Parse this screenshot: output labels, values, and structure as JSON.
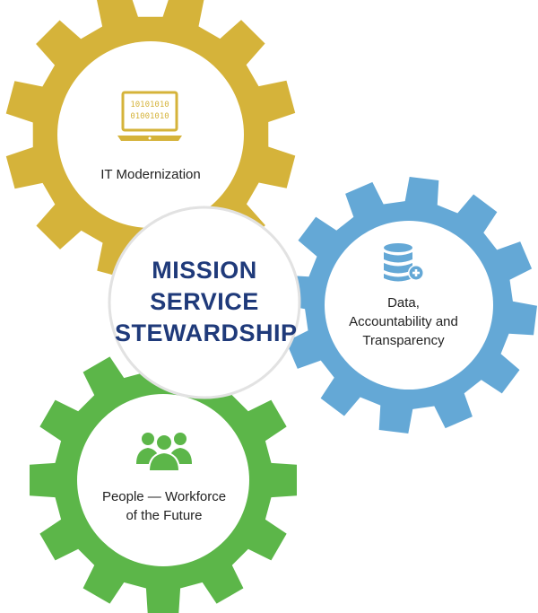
{
  "colors": {
    "gear_it": "#d5b33a",
    "gear_data": "#64a8d6",
    "gear_people": "#5cb649",
    "center_text": "#1f3a7a",
    "label_text": "#222222"
  },
  "center": {
    "lines": [
      "MISSION",
      "SERVICE",
      "STEWARDSHIP"
    ]
  },
  "gears": {
    "it": {
      "icon": "laptop-binary-icon",
      "lines": [
        "IT Modernization"
      ]
    },
    "data": {
      "icon": "database-plus-icon",
      "lines": [
        "Data,",
        "Accountability and",
        "Transparency"
      ]
    },
    "people": {
      "icon": "people-group-icon",
      "lines": [
        "People — Workforce",
        "of the Future"
      ]
    }
  },
  "laptop_screen": {
    "row1": "10101010",
    "row2": "01001010"
  }
}
